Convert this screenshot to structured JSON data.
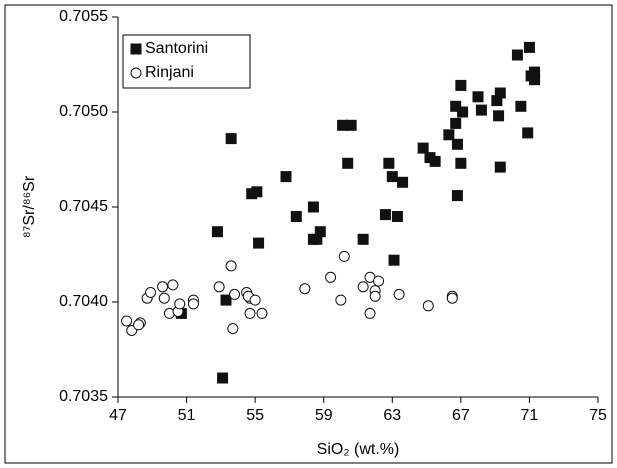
{
  "chart_data": {
    "type": "scatter",
    "x_label": "SiO₂ (wt.%)",
    "y_label": "⁸⁷Sr/⁸⁶Sr",
    "xlim": [
      47,
      75
    ],
    "xticks": [
      47,
      51,
      55,
      59,
      63,
      67,
      71,
      75
    ],
    "ylim": [
      0.7035,
      0.7055
    ],
    "yticks": [
      0.7035,
      {
        "value": 0.704,
        "label": "0.7040"
      },
      0.7045,
      {
        "value": 0.705,
        "label": "0.7050"
      },
      0.7055
    ],
    "legend": "top-left",
    "series": [
      {
        "name": "Santorini",
        "color": "#111111",
        "marker": "filled-square",
        "x": [
          71.0,
          70.3,
          71.3,
          71.1,
          71.3,
          67.0,
          68.0,
          69.3,
          69.1,
          66.7,
          67.1,
          68.2,
          70.5,
          69.2,
          66.7,
          66.3,
          70.9,
          66.8,
          64.8,
          65.2,
          65.5,
          67.0,
          69.3,
          60.1,
          60.6,
          60.4,
          62.8,
          53.6,
          56.8,
          63.0,
          63.6,
          66.8,
          54.8,
          55.1,
          58.4,
          57.4,
          62.6,
          63.3,
          58.8,
          58.4,
          58.6,
          61.3,
          52.8,
          55.2,
          63.1,
          53.3,
          50.7,
          53.1
        ],
        "values": [
          0.70534,
          0.7053,
          0.70521,
          0.70519,
          0.70517,
          0.70514,
          0.70508,
          0.7051,
          0.70506,
          0.70503,
          0.705,
          0.70501,
          0.70503,
          0.70498,
          0.70494,
          0.70488,
          0.70489,
          0.70483,
          0.70481,
          0.70476,
          0.70474,
          0.70473,
          0.70471,
          0.70493,
          0.70493,
          0.70473,
          0.70473,
          0.70486,
          0.70466,
          0.70466,
          0.70463,
          0.70456,
          0.70457,
          0.70458,
          0.7045,
          0.70445,
          0.70446,
          0.70445,
          0.70437,
          0.70433,
          0.70433,
          0.70433,
          0.70437,
          0.70431,
          0.70422,
          0.70401,
          0.70394,
          0.7036
        ]
      },
      {
        "name": "Rinjani",
        "color": "#111111",
        "marker": "open-circle",
        "x": [
          47.5,
          47.8,
          48.3,
          48.2,
          48.7,
          48.9,
          49.6,
          50.2,
          49.7,
          50.0,
          50.5,
          50.6,
          51.4,
          51.4,
          52.9,
          53.6,
          53.8,
          53.7,
          54.5,
          54.7,
          54.6,
          54.7,
          55.0,
          55.4,
          57.9,
          59.4,
          60.2,
          60.0,
          61.3,
          61.7,
          62.0,
          62.0,
          62.2,
          61.7,
          63.4,
          65.1,
          66.5,
          66.5
        ],
        "values": [
          0.7039,
          0.70385,
          0.70389,
          0.70388,
          0.70402,
          0.70405,
          0.70408,
          0.70409,
          0.70402,
          0.70394,
          0.70395,
          0.70399,
          0.70401,
          0.70399,
          0.70408,
          0.70419,
          0.70404,
          0.70386,
          0.70405,
          0.70402,
          0.70403,
          0.70394,
          0.70401,
          0.70394,
          0.70407,
          0.70413,
          0.70424,
          0.70401,
          0.70408,
          0.70413,
          0.70406,
          0.70403,
          0.70411,
          0.70394,
          0.70404,
          0.70398,
          0.70403,
          0.70402
        ]
      }
    ]
  }
}
